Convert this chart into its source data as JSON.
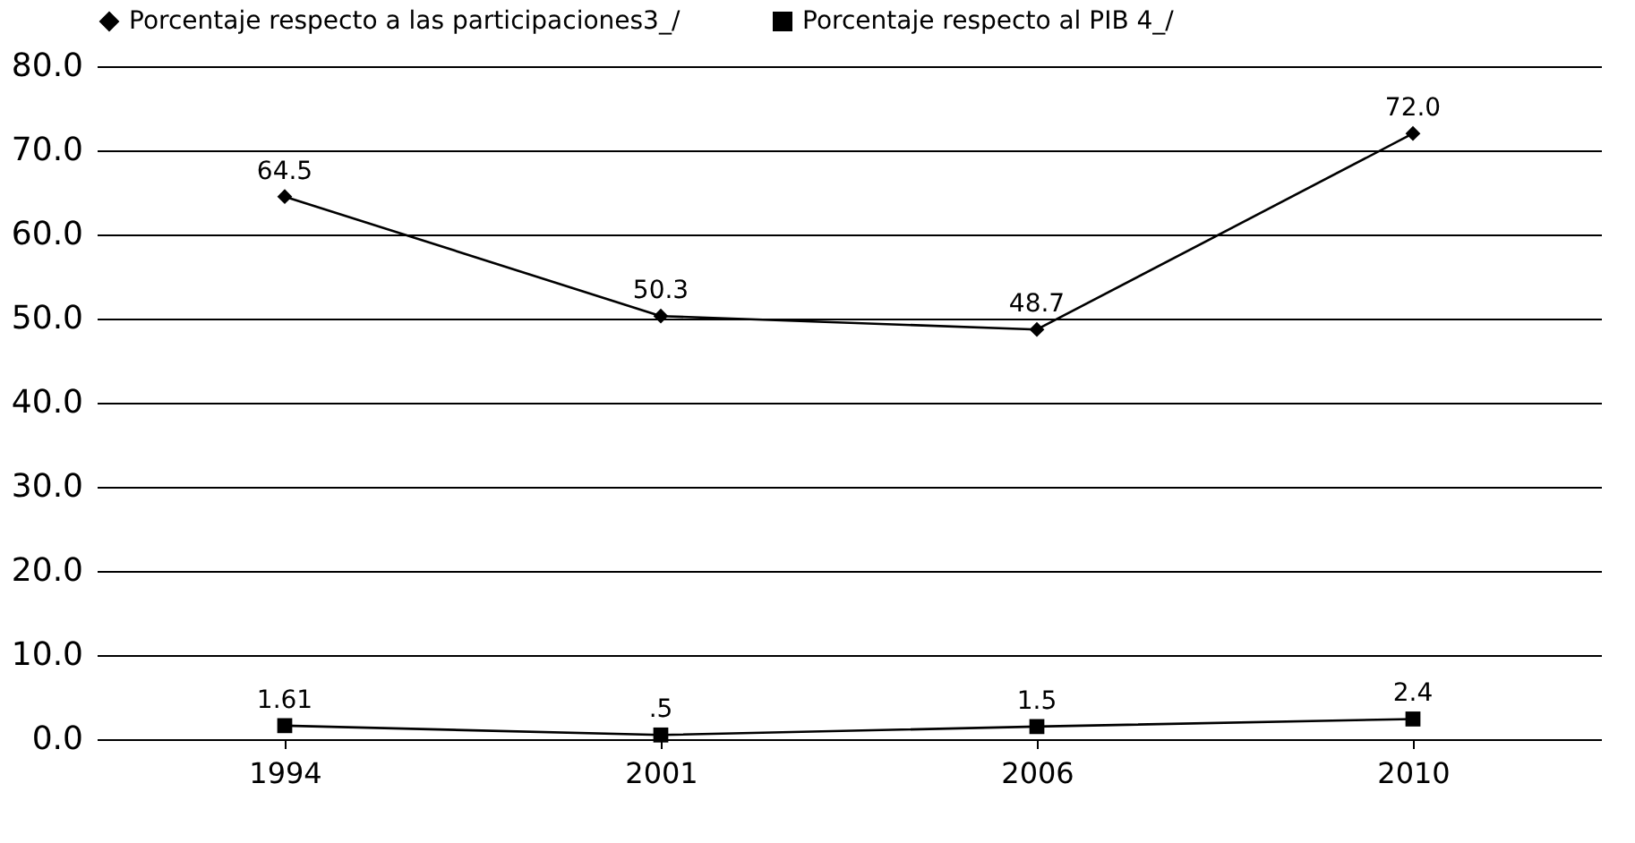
{
  "chart_data": {
    "type": "line",
    "categories": [
      "1994",
      "2001",
      "2006",
      "2010"
    ],
    "series": [
      {
        "name": "Porcentaje respecto a las participaciones3_/",
        "color": "#000000",
        "marker": "diamond",
        "values": [
          64.5,
          50.3,
          48.7,
          72.0
        ],
        "value_labels": [
          "64.5",
          "50.3",
          "48.7",
          "72.0"
        ]
      },
      {
        "name": "Porcentaje respecto al PIB 4_/",
        "color": "#000000",
        "marker": "square",
        "values": [
          1.61,
          0.5,
          1.5,
          2.4
        ],
        "value_labels": [
          "1.61",
          ".5",
          "1.5",
          "2.4"
        ]
      }
    ],
    "ylim": [
      0,
      80
    ],
    "yticks": [
      {
        "value": 0,
        "label": "0.0"
      },
      {
        "value": 10,
        "label": "10.0"
      },
      {
        "value": 20,
        "label": "20.0"
      },
      {
        "value": 30,
        "label": "30.0"
      },
      {
        "value": 40,
        "label": "40.0"
      },
      {
        "value": 50,
        "label": "50.0"
      },
      {
        "value": 60,
        "label": "60.0"
      },
      {
        "value": 70,
        "label": "70.0"
      },
      {
        "value": 80,
        "label": "80.0"
      }
    ],
    "grid": "y",
    "legend": "top",
    "line_style": "solid"
  }
}
